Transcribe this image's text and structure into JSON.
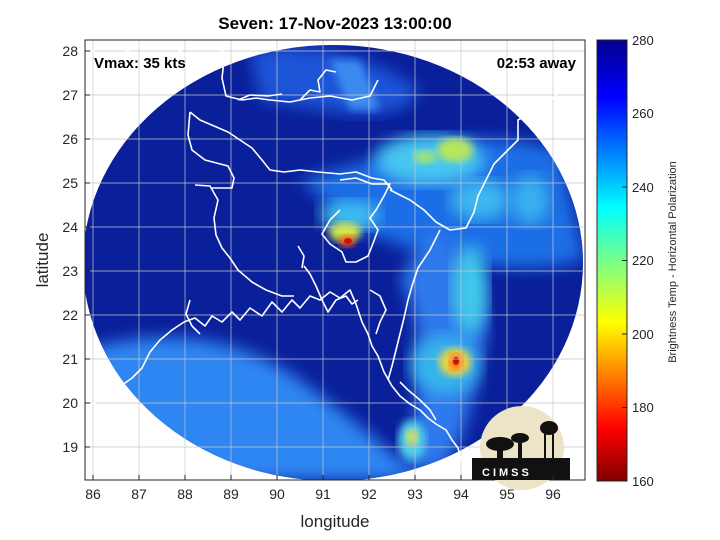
{
  "title": "Seven: 17-Nov-2023 13:00:00",
  "annotations": {
    "vmax": "Vmax: 35 kts",
    "time_away": "02:53 away"
  },
  "logo_text": "CIMSS",
  "axes": {
    "xlabel": "longitude",
    "ylabel": "latitude",
    "xlim": [
      85.7,
      96.7
    ],
    "ylim": [
      18.2,
      28.3
    ],
    "xticks": [
      "86",
      "87",
      "88",
      "89",
      "90",
      "91",
      "92",
      "93",
      "94",
      "95",
      "96"
    ],
    "yticks": [
      "19",
      "20",
      "21",
      "22",
      "23",
      "24",
      "25",
      "26",
      "27",
      "28"
    ],
    "grid": true
  },
  "colorbar": {
    "label": "Brightness Temp - Horizontal Polarization",
    "ticks": [
      "160",
      "180",
      "200",
      "220",
      "240",
      "260",
      "280"
    ],
    "range": [
      160,
      280
    ],
    "colormap": "jet"
  },
  "colors": {
    "cold_background": "#0a1f9a",
    "coastline": "#ffffff",
    "warm_sea": "#2e7fef"
  }
}
